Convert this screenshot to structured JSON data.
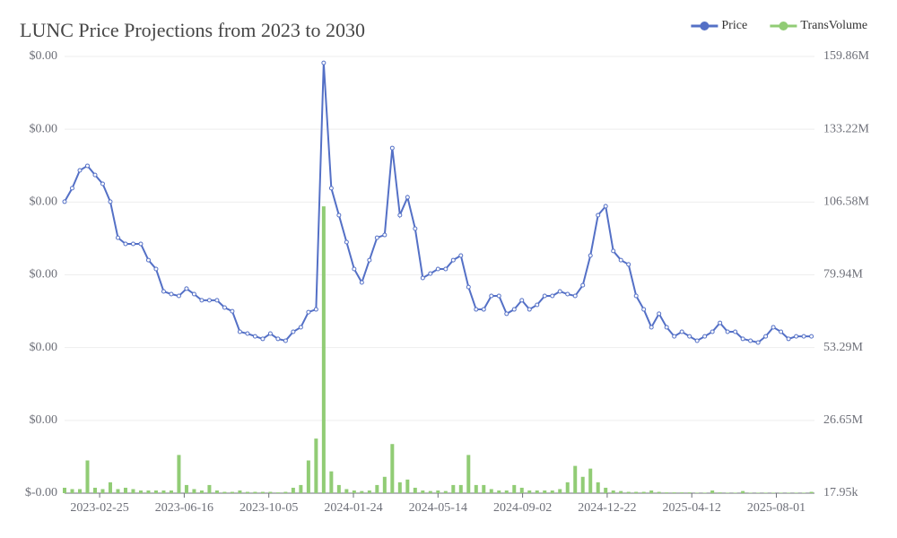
{
  "chart_data": {
    "type": "line",
    "title": "LUNC Price Projections from 2023 to 2030",
    "legend": "top-right",
    "grid": true,
    "x": [
      "2023-01-10",
      "2023-01-20",
      "2023-01-30",
      "2023-02-09",
      "2023-02-19",
      "2023-03-01",
      "2023-03-11",
      "2023-03-21",
      "2023-03-31",
      "2023-04-10",
      "2023-04-20",
      "2023-04-30",
      "2023-05-10",
      "2023-05-20",
      "2023-05-30",
      "2023-06-09",
      "2023-06-19",
      "2023-06-29",
      "2023-07-09",
      "2023-07-19",
      "2023-07-29",
      "2023-08-08",
      "2023-08-18",
      "2023-08-28",
      "2023-09-07",
      "2023-09-17",
      "2023-09-27",
      "2023-10-07",
      "2023-10-17",
      "2023-10-27",
      "2023-11-06",
      "2023-11-16",
      "2023-11-26",
      "2023-12-06",
      "2023-12-16",
      "2023-12-26",
      "2024-01-05",
      "2024-01-15",
      "2024-01-25",
      "2024-02-04",
      "2024-02-14",
      "2024-02-24",
      "2024-03-05",
      "2024-03-15",
      "2024-03-25",
      "2024-04-04",
      "2024-04-14",
      "2024-04-24",
      "2024-05-04",
      "2024-05-14",
      "2024-05-24",
      "2024-06-03",
      "2024-06-13",
      "2024-06-23",
      "2024-07-03",
      "2024-07-13",
      "2024-07-23",
      "2024-08-02",
      "2024-08-12",
      "2024-08-22",
      "2024-09-01",
      "2024-09-11",
      "2024-09-21",
      "2024-10-01",
      "2024-10-11",
      "2024-10-21",
      "2024-10-31",
      "2024-11-10",
      "2024-11-20",
      "2024-11-30",
      "2024-12-10",
      "2024-12-20",
      "2024-12-30",
      "2025-01-09",
      "2025-01-19",
      "2025-01-29",
      "2025-02-08",
      "2025-02-18",
      "2025-02-28",
      "2025-03-10",
      "2025-03-20",
      "2025-03-30",
      "2025-04-09",
      "2025-04-19",
      "2025-04-29",
      "2025-05-09",
      "2025-05-19",
      "2025-05-29",
      "2025-06-08",
      "2025-06-18",
      "2025-06-28",
      "2025-07-08",
      "2025-07-18",
      "2025-07-28",
      "2025-08-07",
      "2025-08-17",
      "2025-08-27",
      "2025-09-06",
      "2025-09-16"
    ],
    "xlim": [
      "2023-01-10",
      "2025-09-20"
    ],
    "xticks": [
      "2023-02-25",
      "2023-06-16",
      "2023-10-05",
      "2024-01-24",
      "2024-05-14",
      "2024-09-02",
      "2024-12-22",
      "2025-04-12",
      "2025-08-01"
    ],
    "ylim": [
      -1e-05,
      0.00023
    ],
    "yticks": [
      {
        "value": -1e-05,
        "label": "$-0.00"
      },
      {
        "value": 3e-05,
        "label": "$0.00"
      },
      {
        "value": 7e-05,
        "label": "$0.00"
      },
      {
        "value": 0.00011,
        "label": "$0.00"
      },
      {
        "value": 0.00015,
        "label": "$0.00"
      },
      {
        "value": 0.00019,
        "label": "$0.00"
      },
      {
        "value": 0.00023,
        "label": "$0.00"
      }
    ],
    "y2lim": [
      17950,
      159860000
    ],
    "y2ticks": [
      {
        "value": 17950,
        "label": "17.95k"
      },
      {
        "value": 26650000,
        "label": "26.65M"
      },
      {
        "value": 53290000,
        "label": "53.29M"
      },
      {
        "value": 79940000,
        "label": "79.94M"
      },
      {
        "value": 106580000,
        "label": "106.58M"
      },
      {
        "value": 133220000,
        "label": "133.22M"
      },
      {
        "value": 159860000,
        "label": "159.86M"
      }
    ],
    "series": [
      {
        "name": "Price",
        "type": "line",
        "color": "#5470c6",
        "values": [
          0.0001502,
          0.0001576,
          0.0001674,
          0.0001699,
          0.0001649,
          0.00016,
          0.0001502,
          0.0001304,
          0.000127,
          0.000127,
          0.000127,
          0.0001181,
          0.0001132,
          0.0001009,
          9.94e-05,
          9.84e-05,
          0.0001024,
          9.94e-05,
          9.6e-05,
          9.6e-05,
          9.6e-05,
          9.2e-05,
          9e-05,
          7.87e-05,
          7.77e-05,
          7.62e-05,
          7.48e-05,
          7.77e-05,
          7.48e-05,
          7.38e-05,
          7.87e-05,
          8.12e-05,
          8.95e-05,
          9.1e-05,
          0.0002265,
          0.0001576,
          0.0001428,
          0.000128,
          0.0001132,
          0.0001058,
          0.0001181,
          0.0001304,
          0.0001319,
          0.0001797,
          0.0001428,
          0.0001526,
          0.0001354,
          0.0001083,
          0.0001107,
          0.0001132,
          0.0001132,
          0.0001181,
          0.0001206,
          0.0001033,
          9.1e-05,
          9.1e-05,
          9.84e-05,
          9.84e-05,
          8.86e-05,
          9.1e-05,
          9.6e-05,
          9.1e-05,
          9.35e-05,
          9.84e-05,
          9.84e-05,
          0.0001009,
          9.94e-05,
          9.84e-05,
          0.0001043,
          0.0001206,
          0.0001428,
          0.0001477,
          0.0001231,
          0.0001181,
          0.0001157,
          9.84e-05,
          9.1e-05,
          8.12e-05,
          8.86e-05,
          8.12e-05,
          7.62e-05,
          7.87e-05,
          7.62e-05,
          7.38e-05,
          7.62e-05,
          7.87e-05,
          8.36e-05,
          7.87e-05,
          7.87e-05,
          7.48e-05,
          7.38e-05,
          7.28e-05,
          7.62e-05,
          8.12e-05,
          7.87e-05,
          7.48e-05,
          7.62e-05,
          7.62e-05,
          7.62e-05
        ]
      },
      {
        "name": "TransVolume",
        "type": "bar",
        "axis": "y2",
        "color": "#91cc75",
        "values": [
          2000000,
          1500000,
          1500000,
          12000000,
          2000000,
          1500000,
          4000000,
          1500000,
          2000000,
          1500000,
          1000000,
          1000000,
          1000000,
          1000000,
          1000000,
          14000000,
          3000000,
          1500000,
          1000000,
          3000000,
          1000000,
          500000,
          500000,
          1000000,
          500000,
          500000,
          500000,
          500000,
          300000,
          500000,
          2000000,
          3000000,
          12000000,
          20000000,
          105000000,
          8000000,
          3000000,
          1500000,
          1000000,
          800000,
          1000000,
          3000000,
          6000000,
          18000000,
          4000000,
          5000000,
          2000000,
          1000000,
          800000,
          1000000,
          800000,
          3000000,
          3000000,
          14000000,
          3000000,
          3000000,
          1500000,
          1000000,
          1000000,
          3000000,
          2000000,
          1000000,
          1000000,
          1000000,
          1000000,
          1500000,
          4000000,
          10000000,
          6000000,
          9000000,
          4000000,
          2000000,
          1000000,
          800000,
          500000,
          500000,
          500000,
          1000000,
          500000,
          300000,
          300000,
          300000,
          300000,
          200000,
          200000,
          1000000,
          300000,
          200000,
          200000,
          800000,
          200000,
          200000,
          200000,
          200000,
          200000,
          200000,
          200000,
          200000,
          500000
        ]
      }
    ]
  }
}
